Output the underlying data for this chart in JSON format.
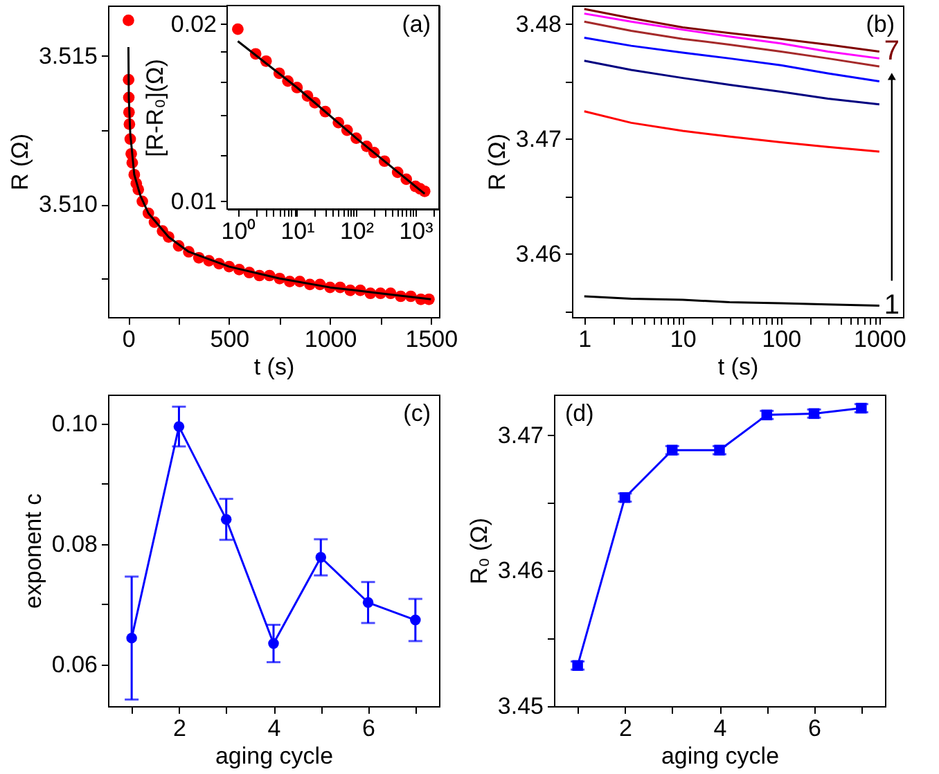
{
  "chart_data": [
    {
      "type": "scatter",
      "xlabel": "t (s)",
      "ylabel": "R (Ω)",
      "xlim": [
        -100,
        1540
      ],
      "ylim": [
        3.5062,
        3.5167
      ],
      "xticks": [
        0,
        {
          "value": 250,
          "label": null
        },
        500,
        {
          "value": 750,
          "label": null
        },
        1000,
        {
          "value": 1250,
          "label": null
        },
        1500
      ],
      "yticks": [
        {
          "value": 3.5075,
          "label": null
        },
        {
          "value": 3.51,
          "label": "3.510"
        },
        {
          "value": 3.5125,
          "label": null
        },
        3.515
      ],
      "series": [
        {
          "type": "scatter",
          "color": "#ff0000",
          "x": [
            1,
            2,
            3,
            4,
            6,
            10,
            15,
            20,
            30,
            40,
            50,
            70,
            100,
            130,
            170,
            200,
            250,
            300,
            350,
            400,
            450,
            500,
            550,
            600,
            650,
            700,
            750,
            800,
            850,
            900,
            950,
            1000,
            1050,
            1100,
            1150,
            1200,
            1250,
            1300,
            1350,
            1400,
            1450,
            1490
          ],
          "values": [
            3.5162,
            3.5142,
            3.5136,
            3.5131,
            3.5127,
            3.5122,
            3.5117,
            3.5114,
            3.511,
            3.5107,
            3.5105,
            3.5101,
            3.5097,
            3.5094,
            3.5091,
            3.5089,
            3.5086,
            3.5084,
            3.5082,
            3.5081,
            3.508,
            3.5079,
            3.5078,
            3.5077,
            3.5076,
            3.5076,
            3.5075,
            3.5074,
            3.5074,
            3.5073,
            3.5073,
            3.5072,
            3.5072,
            3.5071,
            3.5071,
            3.507,
            3.507,
            3.507,
            3.5069,
            3.5069,
            3.5068,
            3.5068
          ]
        },
        {
          "type": "line",
          "color": "#000000",
          "x": [
            1,
            3,
            10,
            30,
            60,
            100,
            200,
            300,
            500,
            750,
            1000,
            1250,
            1500
          ],
          "values": [
            3.5153,
            3.5136,
            3.5124,
            3.511,
            3.5103,
            3.5097,
            3.5089,
            3.5084,
            3.5079,
            3.5075,
            3.5072,
            3.507,
            3.5068
          ]
        }
      ]
    },
    {
      "type": "scatter",
      "ylabel": "[R-R₀](Ω)",
      "log": "xy",
      "xlim": [
        0.66,
        2500
      ],
      "ylim": [
        0.0097,
        0.0215
      ],
      "annotations": [
        "(a)"
      ],
      "xticks": [
        {
          "value": 1,
          "label": "10⁰"
        },
        {
          "value": 2,
          "label": null
        },
        {
          "value": 3,
          "label": null
        },
        {
          "value": 4,
          "label": null
        },
        {
          "value": 5,
          "label": null
        },
        {
          "value": 6,
          "label": null
        },
        {
          "value": 7,
          "label": null
        },
        {
          "value": 8,
          "label": null
        },
        {
          "value": 9,
          "label": null
        },
        {
          "value": 10,
          "label": "10¹"
        },
        {
          "value": 20,
          "label": null
        },
        {
          "value": 30,
          "label": null
        },
        {
          "value": 40,
          "label": null
        },
        {
          "value": 50,
          "label": null
        },
        {
          "value": 60,
          "label": null
        },
        {
          "value": 70,
          "label": null
        },
        {
          "value": 80,
          "label": null
        },
        {
          "value": 90,
          "label": null
        },
        {
          "value": 100,
          "label": "10²"
        },
        {
          "value": 200,
          "label": null
        },
        {
          "value": 300,
          "label": null
        },
        {
          "value": 400,
          "label": null
        },
        {
          "value": 500,
          "label": null
        },
        {
          "value": 600,
          "label": null
        },
        {
          "value": 700,
          "label": null
        },
        {
          "value": 800,
          "label": null
        },
        {
          "value": 900,
          "label": null
        },
        {
          "value": 1000,
          "label": "10³"
        },
        {
          "value": 2000,
          "label": null
        }
      ],
      "yticks": [
        0.01,
        {
          "value": 0.012,
          "label": null
        },
        {
          "value": 0.014,
          "label": null
        },
        {
          "value": 0.016,
          "label": null
        },
        {
          "value": 0.018,
          "label": null
        },
        0.02
      ],
      "series": [
        {
          "type": "scatter",
          "color": "#ff0000",
          "x": [
            1,
            2,
            3,
            5,
            7,
            10,
            15,
            20,
            30,
            50,
            70,
            100,
            150,
            200,
            300,
            500,
            700,
            1000,
            1200,
            1430
          ],
          "values": [
            0.0196,
            0.0178,
            0.0173,
            0.0165,
            0.016,
            0.0156,
            0.0151,
            0.0147,
            0.0142,
            0.0136,
            0.0132,
            0.0128,
            0.0124,
            0.0121,
            0.0117,
            0.0112,
            0.0109,
            0.0106,
            0.0105,
            0.0104
          ]
        },
        {
          "type": "line",
          "color": "#000000",
          "x": [
            1,
            10,
            100,
            1000,
            1430
          ],
          "values": [
            0.0187,
            0.0156,
            0.0128,
            0.0106,
            0.0103
          ]
        }
      ]
    },
    {
      "type": "line",
      "xlabel": "t (s)",
      "ylabel": "R (Ω)",
      "log": "x",
      "xlim": [
        0.75,
        1740
      ],
      "ylim": [
        3.4545,
        3.4816
      ],
      "xticks": [
        1,
        {
          "value": 2,
          "label": null
        },
        {
          "value": 3,
          "label": null
        },
        {
          "value": 4,
          "label": null
        },
        {
          "value": 5,
          "label": null
        },
        {
          "value": 6,
          "label": null
        },
        {
          "value": 7,
          "label": null
        },
        {
          "value": 8,
          "label": null
        },
        {
          "value": 9,
          "label": null
        },
        10,
        {
          "value": 20,
          "label": null
        },
        {
          "value": 30,
          "label": null
        },
        {
          "value": 40,
          "label": null
        },
        {
          "value": 50,
          "label": null
        },
        {
          "value": 60,
          "label": null
        },
        {
          "value": 70,
          "label": null
        },
        {
          "value": 80,
          "label": null
        },
        {
          "value": 90,
          "label": null
        },
        100,
        {
          "value": 200,
          "label": null
        },
        {
          "value": 300,
          "label": null
        },
        {
          "value": 400,
          "label": null
        },
        {
          "value": 500,
          "label": null
        },
        {
          "value": 600,
          "label": null
        },
        {
          "value": 700,
          "label": null
        },
        {
          "value": 800,
          "label": null
        },
        {
          "value": 900,
          "label": null
        },
        1000
      ],
      "yticks": [
        {
          "value": 3.455,
          "label": null
        },
        3.46,
        {
          "value": 3.465,
          "label": null
        },
        3.47,
        {
          "value": 3.475,
          "label": null
        },
        3.48
      ],
      "annotations": [
        "(b)",
        "1",
        "7"
      ],
      "x": [
        1,
        3,
        10,
        30,
        100,
        300,
        1000
      ],
      "series": [
        {
          "color": "#000000",
          "values": [
            3.4563,
            3.4561,
            3.456,
            3.4558,
            3.4557,
            3.4556,
            3.4555
          ]
        },
        {
          "color": "#ff0000",
          "values": [
            3.4724,
            3.4714,
            3.4707,
            3.4702,
            3.4697,
            3.4693,
            3.4689
          ]
        },
        {
          "color": "#000080",
          "values": [
            3.4768,
            3.476,
            3.4753,
            3.4747,
            3.4741,
            3.4735,
            3.473
          ]
        },
        {
          "color": "#0000ff",
          "values": [
            3.4788,
            3.4781,
            3.4775,
            3.477,
            3.4764,
            3.4757,
            3.475
          ]
        },
        {
          "color": "#a52a2a",
          "values": [
            3.4802,
            3.4794,
            3.4787,
            3.4782,
            3.4776,
            3.477,
            3.4763
          ]
        },
        {
          "color": "#ff00ff",
          "values": [
            3.4809,
            3.4802,
            3.4795,
            3.4789,
            3.4783,
            3.4776,
            3.477
          ]
        },
        {
          "color": "#800000",
          "values": [
            3.4813,
            3.4805,
            3.4797,
            3.4792,
            3.4787,
            3.4782,
            3.4776
          ]
        }
      ]
    },
    {
      "type": "line",
      "xlabel": "aging cycle",
      "ylabel": "exponent c",
      "xlim": [
        0.5,
        7.5
      ],
      "ylim": [
        0.0531,
        0.1048
      ],
      "marker": "circle",
      "annotations": [
        "(c)"
      ],
      "xticks": [
        {
          "value": 1,
          "label": null
        },
        2,
        {
          "value": 3,
          "label": null
        },
        4,
        {
          "value": 5,
          "label": null
        },
        6,
        {
          "value": 7,
          "label": null
        }
      ],
      "yticks": [
        0.06,
        {
          "value": 0.07,
          "label": null
        },
        0.08,
        {
          "value": 0.09,
          "label": null
        },
        {
          "value": 0.1,
          "label": "0.10"
        }
      ],
      "x": [
        1,
        2,
        3,
        4,
        5,
        6,
        7
      ],
      "color": "#0000ff",
      "values": [
        0.0644,
        0.0995,
        0.0841,
        0.0635,
        0.0778,
        0.0703,
        0.0674
      ],
      "errors": [
        0.0102,
        0.0033,
        0.0034,
        0.0031,
        0.003,
        0.0034,
        0.0035
      ]
    },
    {
      "type": "line",
      "xlabel": "aging cycle",
      "ylabel": "R₀ (Ω)",
      "xlim": [
        0.5,
        7.5
      ],
      "ylim": [
        3.45,
        3.473
      ],
      "marker": "square",
      "annotations": [
        "(d)"
      ],
      "xticks": [
        {
          "value": 1,
          "label": null
        },
        2,
        {
          "value": 3,
          "label": null
        },
        4,
        {
          "value": 5,
          "label": null
        },
        6,
        {
          "value": 7,
          "label": null
        }
      ],
      "yticks": [
        3.45,
        {
          "value": 3.455,
          "label": null
        },
        3.46,
        {
          "value": 3.465,
          "label": null
        },
        3.47
      ],
      "x": [
        1,
        2,
        3,
        4,
        5,
        6,
        7
      ],
      "color": "#0000ff",
      "values": [
        3.453,
        3.4654,
        3.4689,
        3.4689,
        3.4715,
        3.4716,
        3.472
      ],
      "errors": [
        0.0003,
        0.0003,
        0.0003,
        0.0003,
        0.0003,
        0.0003,
        0.0003
      ]
    }
  ]
}
